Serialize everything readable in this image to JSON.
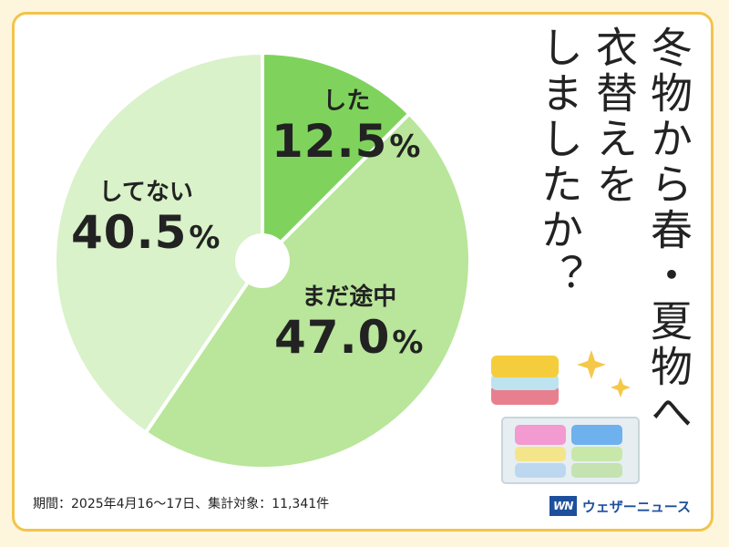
{
  "title": {
    "line1": "冬物から春・夏物へ",
    "line2": "衣替えを",
    "line3": "しましたか？"
  },
  "footnote": "期間：2025年4月16〜17日、集計対象：11,341件",
  "brand": {
    "logo_text": "WN",
    "name": "ウェザーニュース"
  },
  "chart_data": {
    "type": "pie",
    "categories": [
      "した",
      "まだ途中",
      "してない"
    ],
    "values": [
      12.5,
      47.0,
      40.5
    ],
    "unit": "%",
    "colors": [
      "#7fd35c",
      "#b9e69a",
      "#d9f2c9"
    ],
    "donut_hole": true
  },
  "colors": {
    "card_border": "#f2c44a",
    "background": "#fdf5dc",
    "brand": "#1d4f9c"
  },
  "decorations": [
    "folded-clothes-icon",
    "storage-box-icon",
    "sparkle-icon"
  ]
}
